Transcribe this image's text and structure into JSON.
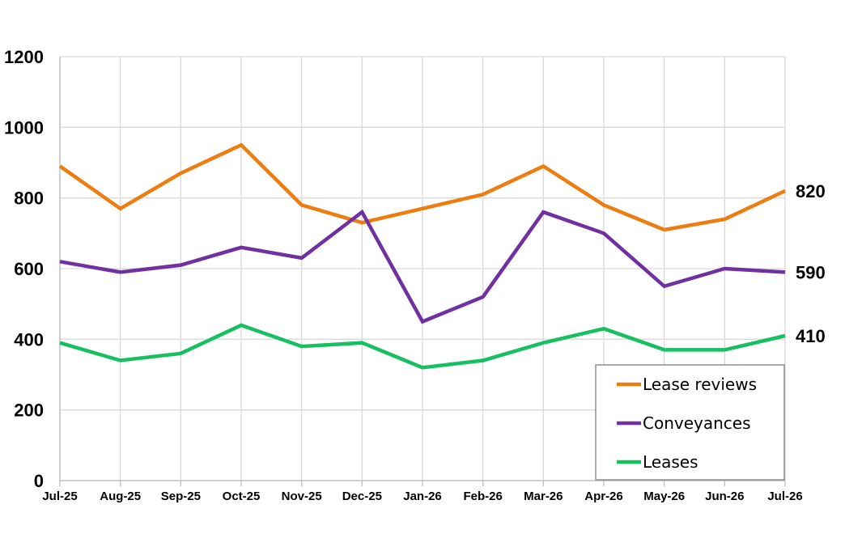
{
  "chart_data": {
    "type": "line",
    "categories": [
      "Jul-25",
      "Aug-25",
      "Sep-25",
      "Oct-25",
      "Nov-25",
      "Dec-25",
      "Jan-26",
      "Feb-26",
      "Mar-26",
      "Apr-26",
      "May-26",
      "Jun-26",
      "Jul-26"
    ],
    "ylim": [
      0,
      1200
    ],
    "yticks": [
      0,
      200,
      400,
      600,
      800,
      1000,
      1200
    ],
    "grid": true,
    "legend_position": "bottom-right",
    "series": [
      {
        "name": "Lease reviews",
        "color": "#ED7D11",
        "values": [
          890,
          770,
          870,
          950,
          780,
          730,
          770,
          810,
          890,
          780,
          710,
          740,
          820
        ],
        "end_label": "820"
      },
      {
        "name": "Conveyances",
        "color": "#7030A0",
        "values": [
          620,
          590,
          610,
          660,
          630,
          760,
          450,
          520,
          760,
          700,
          550,
          600,
          590
        ],
        "end_label": "590"
      },
      {
        "name": "Leases",
        "color": "#16C060",
        "values": [
          390,
          340,
          360,
          440,
          380,
          390,
          320,
          340,
          390,
          430,
          370,
          370,
          410
        ],
        "end_label": "410"
      }
    ]
  }
}
